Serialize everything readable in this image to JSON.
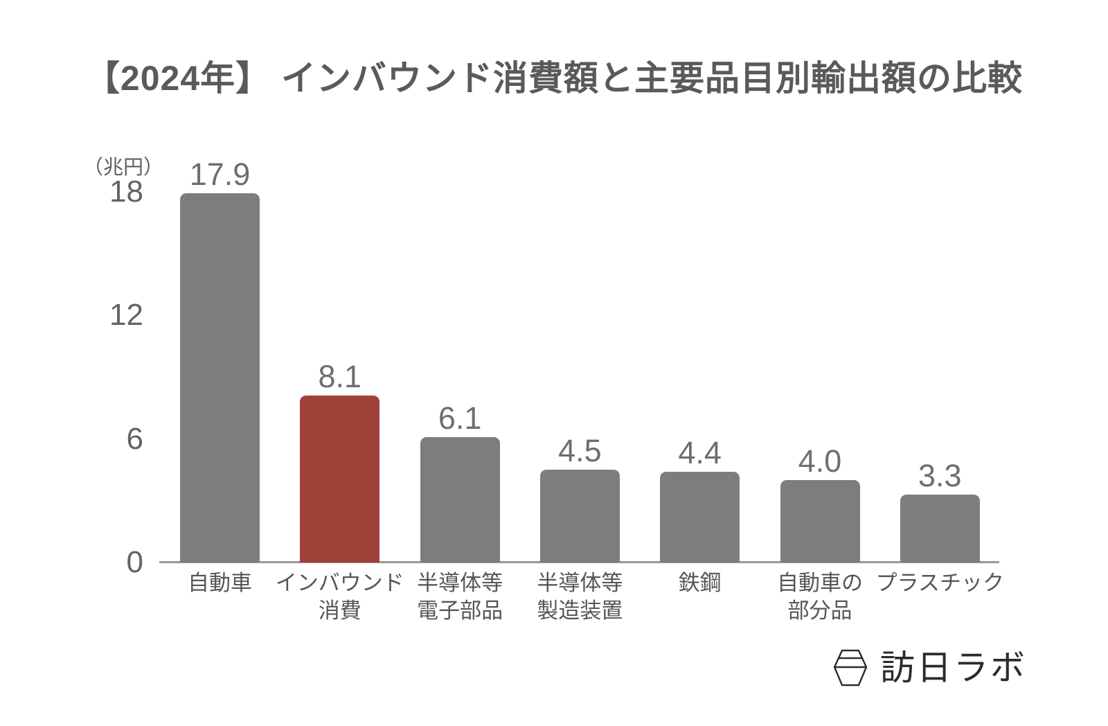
{
  "title": "【2024年】 インバウンド消費額と主要品目別輸出額の比較",
  "chart_data": {
    "type": "bar",
    "title": "【2024年】 インバウンド消費額と主要品目別輸出額の比較",
    "unit_label": "（兆円）",
    "categories": [
      "自動車",
      "インバウンド\n消費",
      "半導体等\n電子部品",
      "半導体等\n製造装置",
      "鉄鋼",
      "自動車の\n部分品",
      "プラスチック"
    ],
    "values": [
      17.9,
      8.1,
      6.1,
      4.5,
      4.4,
      4.0,
      3.3
    ],
    "value_labels": [
      "17.9",
      "8.1",
      "6.1",
      "4.5",
      "4.4",
      "4.0",
      "3.3"
    ],
    "highlight_index": 1,
    "ylim": [
      0,
      18
    ],
    "yticks": [
      0,
      6,
      12,
      18
    ],
    "ytick_labels": [
      "0",
      "6",
      "12",
      "18"
    ],
    "grid": false,
    "legend": "none",
    "colors": {
      "bar": "#7d7d7d",
      "highlight": "#9e4138",
      "value_text": "#6e6e6e",
      "tick_text": "#636363",
      "category_text": "#565656",
      "title_text": "#5a5a5a",
      "axis_line": "#999999"
    }
  },
  "logo": {
    "icon": "hexagon-lantern-icon",
    "text": "訪日ラボ",
    "color": "#2b2b2b"
  }
}
